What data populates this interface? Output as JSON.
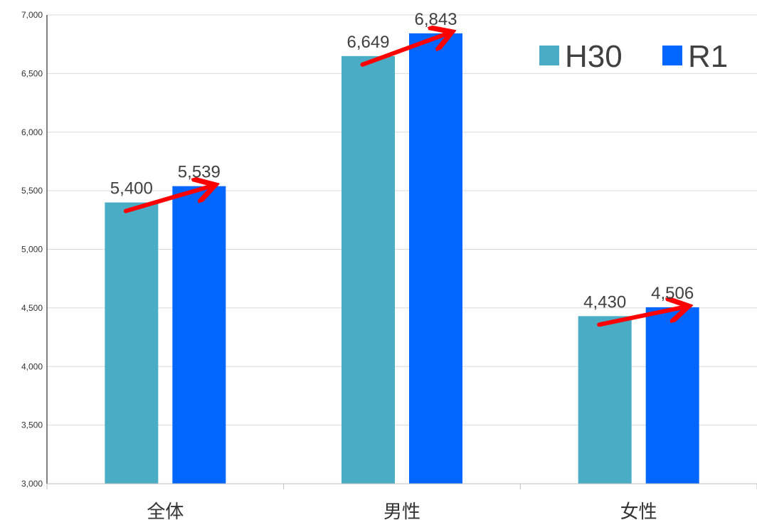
{
  "chart_data": {
    "type": "bar",
    "title": "",
    "xlabel": "",
    "ylabel": "",
    "categories": [
      "全体",
      "男性",
      "女性"
    ],
    "series": [
      {
        "name": "H30",
        "values": [
          5400,
          6649,
          4430
        ],
        "labels": [
          "5,400",
          "6,649",
          "4,430"
        ],
        "color": "#4BACC6"
      },
      {
        "name": "R1",
        "values": [
          5539,
          6843,
          4506
        ],
        "labels": [
          "5,539",
          "6,843",
          "4,506"
        ],
        "color": "#0066FF"
      }
    ],
    "ylim": [
      3000,
      7000
    ],
    "yticks": [
      3000,
      3500,
      4000,
      4500,
      5000,
      5500,
      6000,
      6500,
      7000
    ],
    "ytick_labels": [
      "3,000",
      "3,500",
      "4,000",
      "4,500",
      "5,000",
      "5,500",
      "6,000",
      "6,500",
      "7,000"
    ],
    "grid": true,
    "legend_position": "top-right",
    "annotations": "red arrows from each H30 bar top to the matching R1 bar top",
    "arrow_color": "#FF0000"
  }
}
